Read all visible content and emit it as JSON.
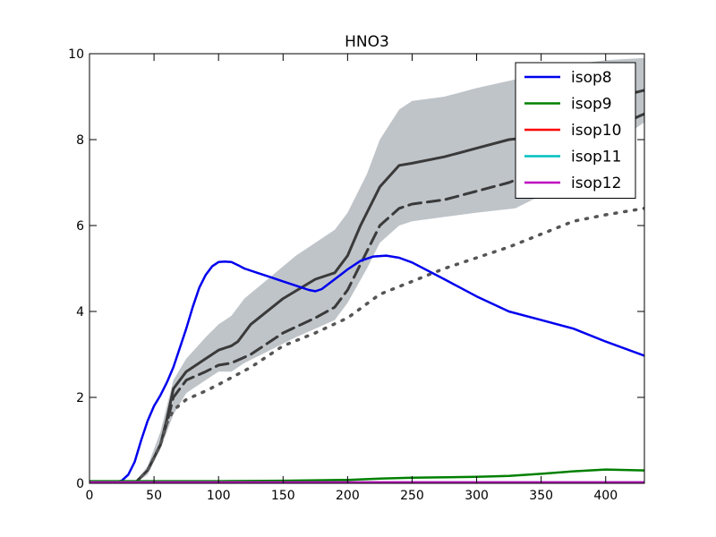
{
  "chart_data": {
    "type": "line",
    "title": "HNO3",
    "xlabel": "",
    "ylabel": "",
    "xlim": [
      0,
      430
    ],
    "ylim": [
      0,
      10
    ],
    "x_ticks": [
      0,
      50,
      100,
      150,
      200,
      250,
      300,
      350,
      400
    ],
    "y_ticks": [
      0,
      2,
      4,
      6,
      8,
      10
    ],
    "grid": false,
    "legend_position": "top-right",
    "band": {
      "color": "#bfc4c9",
      "x": [
        35,
        45,
        55,
        65,
        75,
        90,
        100,
        110,
        120,
        140,
        160,
        175,
        190,
        200,
        215,
        225,
        240,
        250,
        275,
        300,
        330,
        350,
        375,
        400,
        430
      ],
      "upper": [
        0.0,
        0.4,
        1.2,
        2.4,
        2.9,
        3.4,
        3.7,
        3.9,
        4.3,
        4.8,
        5.3,
        5.6,
        5.9,
        6.3,
        7.2,
        8.0,
        8.7,
        8.9,
        9.0,
        9.2,
        9.4,
        9.6,
        9.75,
        9.85,
        9.9
      ],
      "lower": [
        0.0,
        0.2,
        0.8,
        1.6,
        2.1,
        2.4,
        2.6,
        2.6,
        2.8,
        3.1,
        3.4,
        3.6,
        3.8,
        4.2,
        5.0,
        5.6,
        6.0,
        6.1,
        6.2,
        6.3,
        6.4,
        6.7,
        7.2,
        7.8,
        8.4
      ]
    },
    "reference_lines": [
      {
        "style": "solid",
        "color": "#3a3a3a",
        "x": [
          35,
          45,
          55,
          60,
          65,
          75,
          90,
          100,
          110,
          115,
          125,
          150,
          175,
          190,
          200,
          210,
          225,
          240,
          250,
          275,
          300,
          325,
          340,
          360,
          375,
          390,
          410,
          430
        ],
        "y": [
          0.0,
          0.3,
          0.9,
          1.5,
          2.2,
          2.6,
          2.9,
          3.1,
          3.2,
          3.3,
          3.7,
          4.3,
          4.75,
          4.9,
          5.3,
          6.0,
          6.9,
          7.4,
          7.45,
          7.6,
          7.8,
          8.0,
          8.05,
          8.3,
          8.55,
          8.75,
          9.0,
          9.15
        ]
      },
      {
        "style": "dashed",
        "color": "#3a3a3a",
        "x": [
          35,
          45,
          55,
          60,
          65,
          75,
          90,
          100,
          110,
          125,
          150,
          175,
          190,
          200,
          210,
          225,
          240,
          250,
          275,
          300,
          325,
          350,
          375,
          400,
          430
        ],
        "y": [
          0.0,
          0.3,
          0.9,
          1.4,
          2.0,
          2.4,
          2.6,
          2.75,
          2.8,
          3.0,
          3.5,
          3.85,
          4.1,
          4.5,
          5.1,
          6.0,
          6.4,
          6.5,
          6.6,
          6.8,
          7.0,
          7.3,
          7.7,
          8.2,
          8.6
        ]
      },
      {
        "style": "dotted",
        "color": "#555555",
        "x": [
          35,
          45,
          55,
          60,
          65,
          75,
          90,
          100,
          125,
          150,
          175,
          200,
          225,
          250,
          275,
          300,
          325,
          350,
          375,
          400,
          430
        ],
        "y": [
          0.0,
          0.3,
          0.9,
          1.4,
          1.7,
          1.95,
          2.15,
          2.3,
          2.7,
          3.2,
          3.5,
          3.85,
          4.4,
          4.7,
          5.0,
          5.25,
          5.5,
          5.8,
          6.1,
          6.25,
          6.4
        ]
      }
    ],
    "series": [
      {
        "name": "isop8",
        "color": "#0000ee",
        "x": [
          0,
          20,
          25,
          30,
          35,
          40,
          45,
          50,
          55,
          60,
          65,
          70,
          75,
          80,
          85,
          90,
          95,
          100,
          105,
          110,
          115,
          120,
          130,
          140,
          150,
          160,
          170,
          175,
          180,
          190,
          200,
          210,
          220,
          230,
          240,
          250,
          275,
          300,
          325,
          350,
          375,
          400,
          430
        ],
        "y": [
          0.02,
          0.03,
          0.06,
          0.2,
          0.5,
          1.0,
          1.45,
          1.8,
          2.05,
          2.35,
          2.7,
          3.15,
          3.6,
          4.1,
          4.55,
          4.85,
          5.05,
          5.15,
          5.16,
          5.15,
          5.08,
          5.0,
          4.9,
          4.8,
          4.7,
          4.6,
          4.5,
          4.47,
          4.52,
          4.75,
          4.98,
          5.18,
          5.28,
          5.3,
          5.25,
          5.14,
          4.75,
          4.35,
          4.0,
          3.8,
          3.6,
          3.3,
          2.97
        ]
      },
      {
        "name": "isop9",
        "color": "#008000",
        "x": [
          0,
          50,
          100,
          150,
          200,
          225,
          250,
          300,
          325,
          350,
          375,
          400,
          430
        ],
        "y": [
          0.05,
          0.05,
          0.05,
          0.06,
          0.08,
          0.11,
          0.13,
          0.15,
          0.17,
          0.22,
          0.28,
          0.32,
          0.3
        ]
      },
      {
        "name": "isop10",
        "color": "#ff0000",
        "x": [
          0,
          430
        ],
        "y": [
          0.02,
          0.02
        ]
      },
      {
        "name": "isop11",
        "color": "#00bfbf",
        "x": [
          0,
          430
        ],
        "y": [
          0.02,
          0.02
        ]
      },
      {
        "name": "isop12",
        "color": "#bf00bf",
        "x": [
          0,
          430
        ],
        "y": [
          0.02,
          0.02
        ]
      }
    ]
  }
}
